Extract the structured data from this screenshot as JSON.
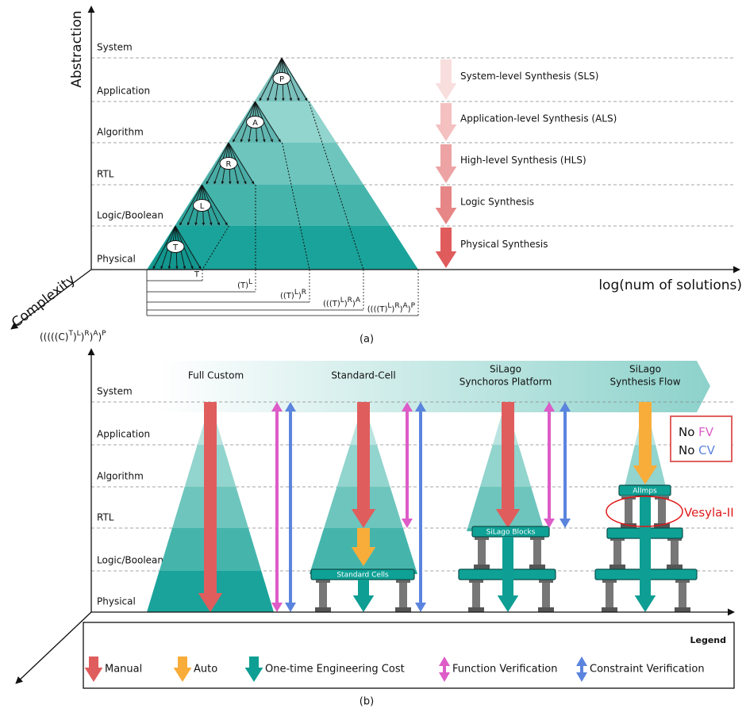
{
  "a": {
    "y_axis": "Abstraction",
    "z_axis": "Complexity",
    "x_axis": "log(num of solutions)",
    "levels": [
      "System",
      "Application",
      "Algorithm",
      "RTL",
      "Logic/Boolean",
      "Physical"
    ],
    "nodes": [
      "P",
      "A",
      "R",
      "L",
      "T"
    ],
    "steps": [
      "System-level Synthesis (SLS)",
      "Application-level Synthesis (ALS)",
      "High-level Synthesis (HLS)",
      "Logic Synthesis",
      "Physical Synthesis"
    ],
    "brackets": [
      [
        "T"
      ],
      [
        "(T)",
        "L"
      ],
      [
        "((T)",
        "L",
        ")",
        "R"
      ],
      [
        "(((T)",
        "L",
        ")",
        "R",
        ")",
        "A"
      ],
      [
        "((((T)",
        "L",
        ")",
        "R",
        ")",
        "A",
        ")",
        "P"
      ]
    ],
    "complexity": [
      "(((((C)",
      "T",
      ")",
      "L",
      ")",
      "R",
      ")",
      "A",
      ")",
      "P"
    ],
    "caption": "(a)"
  },
  "b": {
    "levels": [
      "System",
      "Application",
      "Algorithm",
      "RTL",
      "Logic/Boolean",
      "Physical"
    ],
    "columns": [
      [
        "Full Custom"
      ],
      [
        "Standard-Cell"
      ],
      [
        "SiLago",
        "Synchoros Platform"
      ],
      [
        "SiLago",
        "Synthesis Flow"
      ]
    ],
    "blocks": {
      "standard_cells": "Standard Cells",
      "silago_blocks": "SiLago Blocks",
      "alimps": "AlImps"
    },
    "note": [
      [
        "No ",
        "FV"
      ],
      [
        "No ",
        "CV"
      ]
    ],
    "vesyla": "Vesyla-II",
    "legend": {
      "title": "Legend",
      "items": [
        "Manual",
        "Auto",
        "One-time Engineering Cost",
        "Function Verification",
        "Constraint Verification"
      ]
    },
    "caption": "(b)"
  }
}
